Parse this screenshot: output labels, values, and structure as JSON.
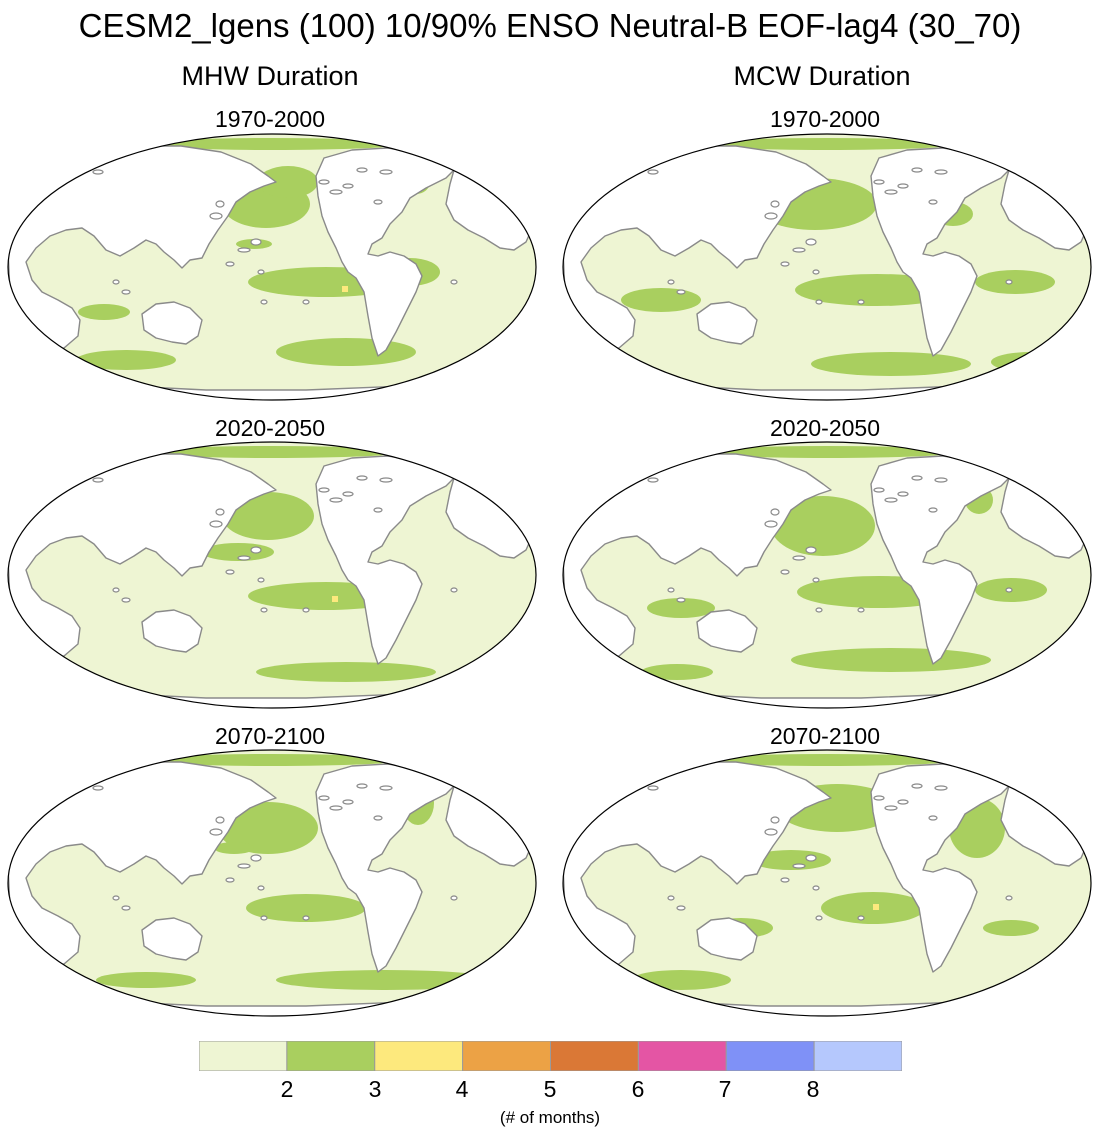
{
  "title": "CESM2_lgens (100) 10/90% ENSO Neutral-B EOF-lag4 (30_70)",
  "columns": [
    {
      "title": "MHW Duration"
    },
    {
      "title": "MCW Duration"
    }
  ],
  "panels": [
    {
      "col": 0,
      "row": 0,
      "period": "1970-2000"
    },
    {
      "col": 0,
      "row": 1,
      "period": "2020-2050"
    },
    {
      "col": 0,
      "row": 2,
      "period": "2070-2100"
    },
    {
      "col": 1,
      "row": 0,
      "period": "1970-2000"
    },
    {
      "col": 1,
      "row": 1,
      "period": "2020-2050"
    },
    {
      "col": 1,
      "row": 2,
      "period": "2070-2100"
    }
  ],
  "colorbar": {
    "colors": [
      "#eef5d3",
      "#a9cf5f",
      "#fde97d",
      "#eca245",
      "#da7836",
      "#e455a4",
      "#7f91f7",
      "#b5c8fd"
    ],
    "tick_labels": [
      "2",
      "3",
      "4",
      "5",
      "6",
      "7",
      "8"
    ],
    "units": "(# of months)"
  },
  "map_colors": {
    "ocean_base": "#eef5d3",
    "high_duration": "#a9cf5f",
    "peak": "#fde97d",
    "land": "#ffffff",
    "coast": "#8a8a8a"
  }
}
